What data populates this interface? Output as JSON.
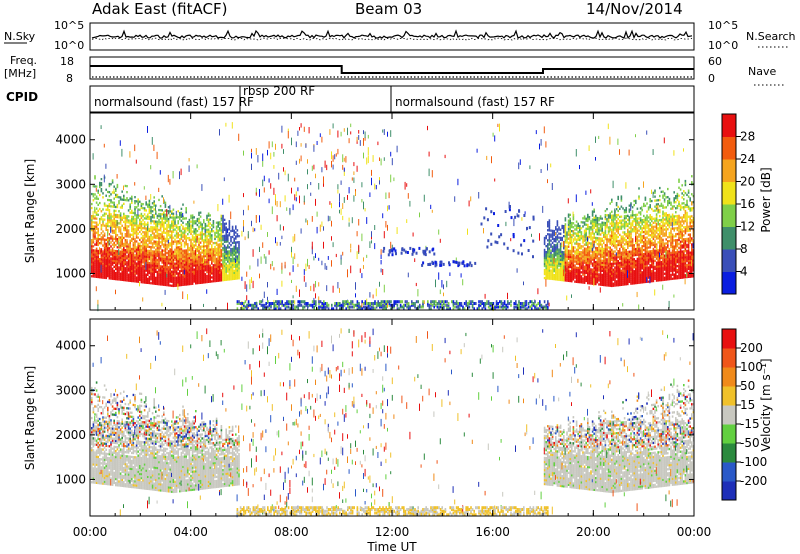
{
  "header": {
    "station": "Adak East (fitACF)",
    "beam": "Beam 03",
    "date": "14/Nov/2014"
  },
  "noise_panel": {
    "left_label": "N.Sky",
    "left_ticks": [
      "10^5",
      "10^0"
    ],
    "right_label": "N.Search",
    "right_ticks": [
      "10^5",
      "10^0"
    ]
  },
  "freq_panel": {
    "left_label_1": "Freq.",
    "left_label_2": "[MHz]",
    "left_ticks": [
      "18",
      "8"
    ],
    "right_ticks": [
      "60",
      "0"
    ],
    "right_label": "Nave"
  },
  "cpid_panel": {
    "label": "CPID",
    "segments": [
      {
        "text": "normalsound (fast) 157 RF",
        "start_hour": 0,
        "end_hour": 6
      },
      {
        "text": "rbsp 200 RF",
        "start_hour": 6,
        "end_hour": 12
      },
      {
        "text": "normalsound (fast) 157 RF",
        "start_hour": 12,
        "end_hour": 24
      }
    ]
  },
  "chart_data": [
    {
      "type": "heatmap",
      "name": "power",
      "ylabel": "Slant Range [km]",
      "yticks": [
        1000,
        2000,
        3000,
        4000
      ],
      "ylim": [
        180,
        4600
      ],
      "xlim": [
        0,
        24
      ],
      "colorbar": {
        "label": "Power [dB]",
        "ticks": [
          "4",
          "8",
          "12",
          "16",
          "20",
          "24",
          "28"
        ],
        "colors": [
          "#0a1ee0",
          "#3a4fb8",
          "#3f8f6a",
          "#7fcf48",
          "#f0e21a",
          "#f5a41e",
          "#f25c0e",
          "#e81010"
        ]
      },
      "approx_echo_regions": [
        {
          "start_hour": 0.0,
          "end_hour": 5.9,
          "min_km": 700,
          "max_km": 2800,
          "level_db": "strongest near 1000 km"
        },
        {
          "start_hour": 18.0,
          "end_hour": 24.0,
          "min_km": 700,
          "max_km": 2800,
          "level_db": "strongest near 1000 km"
        },
        {
          "start_hour": 6.0,
          "end_hour": 18.0,
          "min_km": 200,
          "max_km": 400,
          "level_db": "weak ground scatter"
        }
      ]
    },
    {
      "type": "heatmap",
      "name": "velocity",
      "ylabel": "Slant Range [km]",
      "yticks": [
        1000,
        2000,
        3000,
        4000
      ],
      "ylim": [
        180,
        4600
      ],
      "xlim": [
        0,
        24
      ],
      "xticks": [
        "00:00",
        "04:00",
        "08:00",
        "12:00",
        "16:00",
        "20:00",
        "00:00"
      ],
      "xlabel": "Time UT",
      "colorbar": {
        "label": "Velocity [m s⁻¹]",
        "ticks": [
          "200",
          "100",
          "50",
          "15",
          "-15",
          "-50",
          "-100",
          "-200"
        ],
        "colors": [
          "#1e2fb8",
          "#2a59c8",
          "#2b8a3e",
          "#62d040",
          "#c8c8c0",
          "#f0c12a",
          "#f08a1a",
          "#f0561a",
          "#e81010"
        ]
      }
    }
  ]
}
